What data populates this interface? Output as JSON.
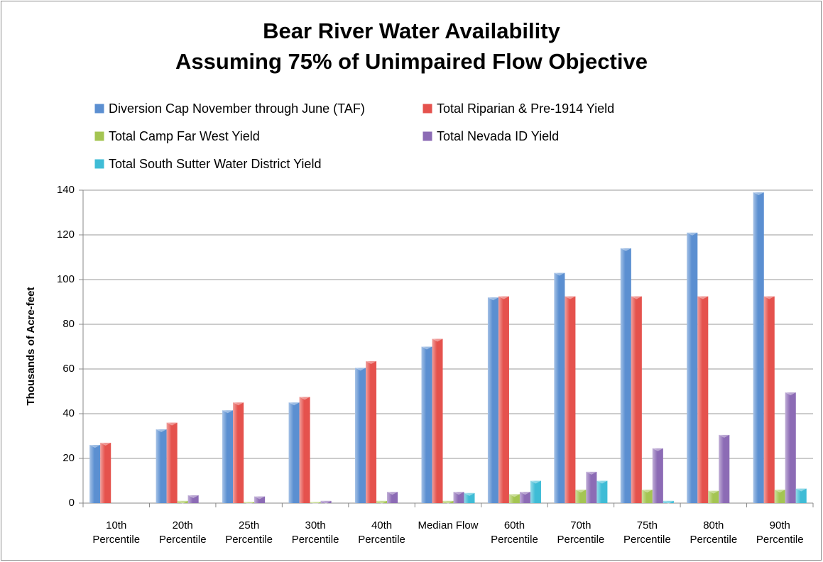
{
  "chart_data": {
    "type": "bar",
    "title": "Bear River Water Availability",
    "subtitle": "Assuming 75% of Unimpaired Flow Objective",
    "y_label": "Thousands of Acre-feet",
    "categories": [
      "10th Percentile",
      "20th Percentile",
      "25th Percentile",
      "30th Percentile",
      "40th Percentile",
      "Median Flow",
      "60th Percentile",
      "70th Percentile",
      "75th Percentile",
      "80th Percentile",
      "90th Percentile"
    ],
    "series": [
      {
        "name": "Diversion Cap November through June (TAF)",
        "color": "#5b8fd1",
        "values": [
          26,
          33,
          41.5,
          45,
          60.5,
          70,
          92,
          103,
          114,
          121,
          139
        ]
      },
      {
        "name": "Total Riparian & Pre-1914 Yield",
        "color": "#e5524d",
        "values": [
          27,
          36,
          45,
          47.5,
          63.5,
          73.5,
          92.5,
          92.5,
          92.5,
          92.5,
          92.5
        ]
      },
      {
        "name": "Total Camp Far West Yield",
        "color": "#a4c552",
        "values": [
          0,
          1,
          0.5,
          0.5,
          1,
          1,
          4,
          6,
          6,
          5.5,
          6
        ]
      },
      {
        "name": "Total Nevada ID Yield",
        "color": "#8c6bb5",
        "values": [
          0,
          3.5,
          3,
          1,
          5,
          5,
          5,
          14,
          24.5,
          30.5,
          49.5
        ]
      },
      {
        "name": "Total South Sutter Water District Yield",
        "color": "#3fbcd6",
        "values": [
          0,
          0,
          0,
          0,
          0,
          4.5,
          10,
          10,
          1,
          0,
          6.5
        ]
      }
    ],
    "ylim": [
      0,
      140
    ],
    "yticks": [
      0,
      20,
      40,
      60,
      80,
      100,
      120,
      140
    ],
    "grid": true
  }
}
